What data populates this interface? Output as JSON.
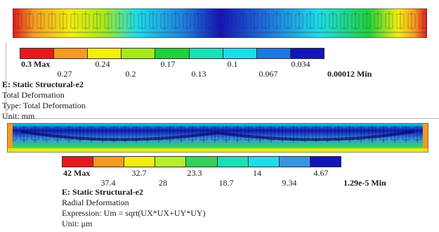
{
  "panel1": {
    "legend_colors": [
      "#e41a1c",
      "#f59a23",
      "#f2ee12",
      "#a6e81e",
      "#1fd13c",
      "#19e0b5",
      "#1ddde8",
      "#1e78e0",
      "#1414b8"
    ],
    "ticks_top": [
      "0.3 Max",
      "0.24",
      "0.17",
      "0.1",
      "0.034"
    ],
    "ticks_bottom": [
      "0.27",
      "0.2",
      "0.13",
      "0.067"
    ],
    "min_label": "0.00012 Min",
    "title": "E: Static Structural-e2",
    "lines": [
      "Total Deformation",
      "Type: Total Deformation",
      "Unit: mm"
    ]
  },
  "panel2": {
    "legend_colors": [
      "#e41a1c",
      "#f59a23",
      "#f2ee12",
      "#b5ee2a",
      "#34d25a",
      "#19e0b5",
      "#1ddde8",
      "#3696e6",
      "#1414b8"
    ],
    "ticks_top": [
      "42 Max",
      "32.7",
      "23.3",
      "14",
      "4.67"
    ],
    "ticks_bottom": [
      "37.4",
      "28",
      "18.7",
      "9.34"
    ],
    "min_label": "1.29e-5 Min",
    "title": "E: Static Structural-e2",
    "lines": [
      "Radial Deformation",
      "Expression: Um = sqrt(UX*UX+UY*UY)",
      "Unit: μm"
    ]
  }
}
